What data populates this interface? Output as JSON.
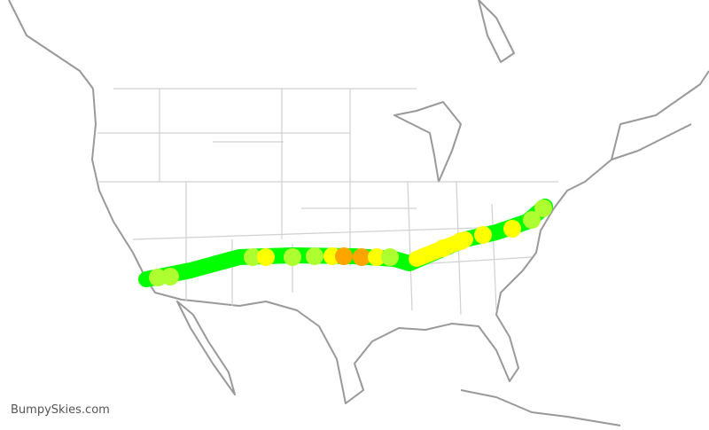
{
  "footer": {
    "watermark": "BumpySkies.com"
  }
}
